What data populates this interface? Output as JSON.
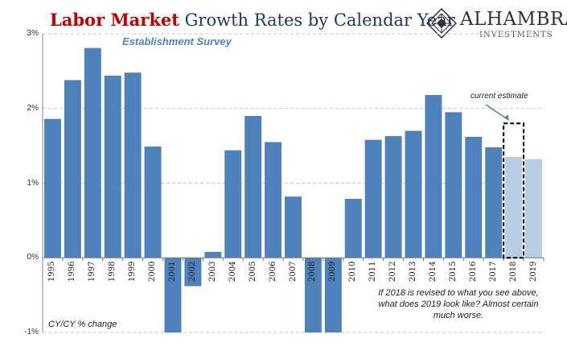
{
  "header": {
    "title_highlight": "Labor Market",
    "title_rest": " Growth Rates by Calendar Year",
    "subtitle": "Establishment Survey"
  },
  "logo": {
    "name": "ALHAMBRA",
    "sub": "INVESTMENTS",
    "icon": "alhambra-diamond-icon"
  },
  "notes": {
    "unit": "CY/CY % change",
    "current_estimate": "current estimate",
    "annotation": "If 2018 is revised to what you see above, what does 2019 look like? Almost certain much worse."
  },
  "colors": {
    "bar": "#4f81bd",
    "estimate_bar": "#b8cce4",
    "title_highlight": "#c00000",
    "title_rest": "#1f3864",
    "subtitle": "#4f81bd",
    "grid": "#c8c8c8"
  },
  "chart_data": {
    "type": "bar",
    "title": "Labor Market Growth Rates by Calendar Year",
    "subtitle": "Establishment Survey",
    "ylabel": "",
    "xlabel": "",
    "ylim": [
      -1,
      3
    ],
    "y_ticks": [
      "-1%",
      "0%",
      "1%",
      "2%",
      "3%"
    ],
    "y_tick_values": [
      -1,
      0,
      1,
      2,
      3
    ],
    "grid": true,
    "categories": [
      "1995",
      "1996",
      "1997",
      "1998",
      "1999",
      "2000",
      "2001",
      "2002",
      "2003",
      "2004",
      "2005",
      "2006",
      "2007",
      "2008",
      "2009",
      "2010",
      "2011",
      "2012",
      "2013",
      "2014",
      "2015",
      "2016",
      "2017",
      "2018",
      "2019"
    ],
    "values": [
      1.86,
      2.38,
      2.81,
      2.44,
      2.48,
      1.49,
      -1.0,
      -0.38,
      0.08,
      1.44,
      1.9,
      1.55,
      0.82,
      -1.0,
      -1.0,
      0.79,
      1.58,
      1.63,
      1.7,
      2.18,
      1.95,
      1.62,
      1.48,
      1.35,
      1.32
    ],
    "estimate_categories": [
      "2018",
      "2019"
    ],
    "highlight_box_category": "2018",
    "highlight_box_value": 1.8
  }
}
